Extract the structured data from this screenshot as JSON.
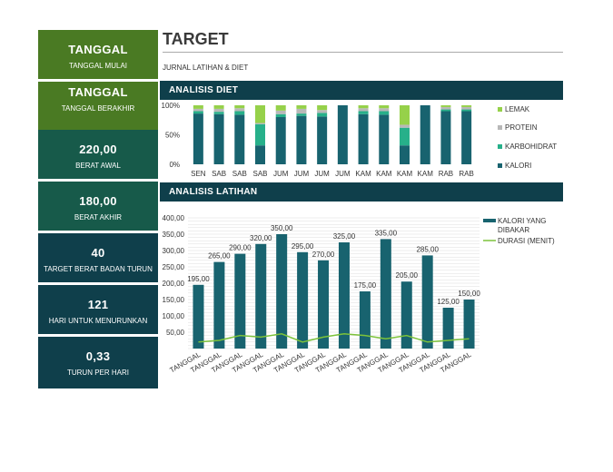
{
  "sidebar": {
    "cards": [
      {
        "value": "TANGGAL",
        "label": "TANGGAL MULAI"
      },
      {
        "value": "TANGGAL",
        "label": "TANGGAL BERAKHIR"
      },
      {
        "value": "220,00",
        "label": "BERAT AWAL"
      },
      {
        "value": "180,00",
        "label": "BERAT AKHIR"
      },
      {
        "value": "40",
        "label": "TARGET BERAT BADAN TURUN"
      },
      {
        "value": "121",
        "label": "HARI UNTUK MENURUNKAN"
      },
      {
        "value": "0,33",
        "label": "TURUN PER HARI"
      }
    ]
  },
  "header": {
    "title": "TARGET",
    "subtitle": "JURNAL LATIHAN & DIET"
  },
  "sections": {
    "diet": "ANALISIS DIET",
    "exercise": "ANALISIS LATIHAN"
  },
  "colors": {
    "green": "#4a7a23",
    "teal": "#175a4a",
    "dark": "#0f3f4b",
    "series_kalori": "#18636f",
    "series_karbo": "#27b08a",
    "series_protein": "#b8b8b8",
    "series_lemak": "#96d14a",
    "series_durasi": "#7cc23a"
  },
  "chart_data": [
    {
      "type": "bar",
      "stacked": "percent",
      "title": "ANALISIS DIET",
      "categories": [
        "SEN",
        "SAB",
        "SAB",
        "SAB",
        "JUM",
        "JUM",
        "JUM",
        "JUM",
        "KAM",
        "KAM",
        "KAM",
        "KAM",
        "RAB",
        "RAB"
      ],
      "yticks": [
        "0%",
        "50%",
        "100%"
      ],
      "ylim": [
        0,
        100
      ],
      "legend_position": "right",
      "series": [
        {
          "name": "KALORI",
          "values": [
            86,
            85,
            84,
            32,
            80,
            82,
            81,
            100,
            85,
            84,
            32,
            100,
            90,
            90
          ]
        },
        {
          "name": "KARBOHIDRAT",
          "values": [
            4,
            4,
            6,
            36,
            5,
            4,
            6,
            0,
            5,
            6,
            30,
            0,
            3,
            3
          ]
        },
        {
          "name": "PROTEIN",
          "values": [
            4,
            5,
            5,
            2,
            6,
            8,
            5,
            0,
            5,
            5,
            5,
            0,
            4,
            4
          ]
        },
        {
          "name": "LEMAK",
          "values": [
            6,
            6,
            5,
            30,
            9,
            6,
            8,
            0,
            5,
            5,
            33,
            0,
            3,
            3
          ]
        }
      ]
    },
    {
      "type": "bar",
      "title": "ANALISIS LATIHAN",
      "categories": [
        "TANGGAL",
        "TANGGAL",
        "TANGGAL",
        "TANGGAL",
        "TANGGAL",
        "TANGGAL",
        "TANGGAL",
        "TANGGAL",
        "TANGGAL",
        "TANGGAL",
        "TANGGAL",
        "TANGGAL",
        "TANGGAL",
        "TANGGAL"
      ],
      "yticks": [
        "50,00",
        "100,00",
        "150,00",
        "200,00",
        "250,00",
        "300,00",
        "350,00",
        "400,00"
      ],
      "ylim": [
        0,
        400
      ],
      "grid": true,
      "legend_position": "right",
      "series": [
        {
          "name": "KALORI YANG DIBAKAR",
          "type": "bar",
          "values": [
            195,
            265,
            290,
            320,
            350,
            295,
            270,
            325,
            175,
            335,
            205,
            285,
            125,
            150
          ],
          "labels": [
            "195,00",
            "265,00",
            "290,00",
            "320,00",
            "350,00",
            "295,00",
            "270,00",
            "325,00",
            "175,00",
            "335,00",
            "205,00",
            "285,00",
            "125,00",
            "150,00"
          ]
        },
        {
          "name": "DURASI (MENIT)",
          "type": "line",
          "values": [
            20,
            25,
            40,
            35,
            45,
            20,
            35,
            45,
            40,
            30,
            40,
            20,
            25,
            30
          ]
        }
      ]
    }
  ]
}
